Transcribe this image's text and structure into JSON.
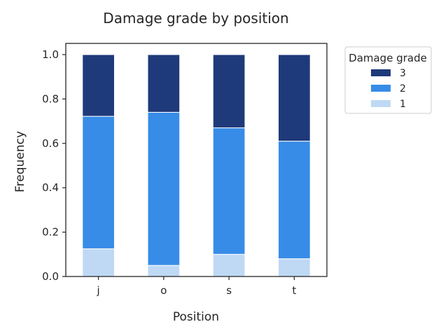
{
  "chart_data": {
    "type": "bar",
    "stacked": true,
    "normalized": true,
    "title": "Damage grade by position",
    "xlabel": "Position",
    "ylabel": "Frequency",
    "categories": [
      "j",
      "o",
      "s",
      "t"
    ],
    "ylim": [
      0,
      1.0
    ],
    "yticks": [
      "0.0",
      "0.2",
      "0.4",
      "0.6",
      "0.8",
      "1.0"
    ],
    "series": [
      {
        "name": "1",
        "color": "#bfd9f5",
        "values": [
          0.125,
          0.05,
          0.1,
          0.08
        ]
      },
      {
        "name": "2",
        "color": "#378ce8",
        "values": [
          0.597,
          0.69,
          0.57,
          0.53
        ]
      },
      {
        "name": "3",
        "color": "#1f3a7a",
        "values": [
          0.278,
          0.26,
          0.33,
          0.39
        ]
      }
    ],
    "legend": {
      "title": "Damage grade",
      "placement": "outside-top-right",
      "order": [
        "3",
        "2",
        "1"
      ]
    },
    "grid": false
  }
}
